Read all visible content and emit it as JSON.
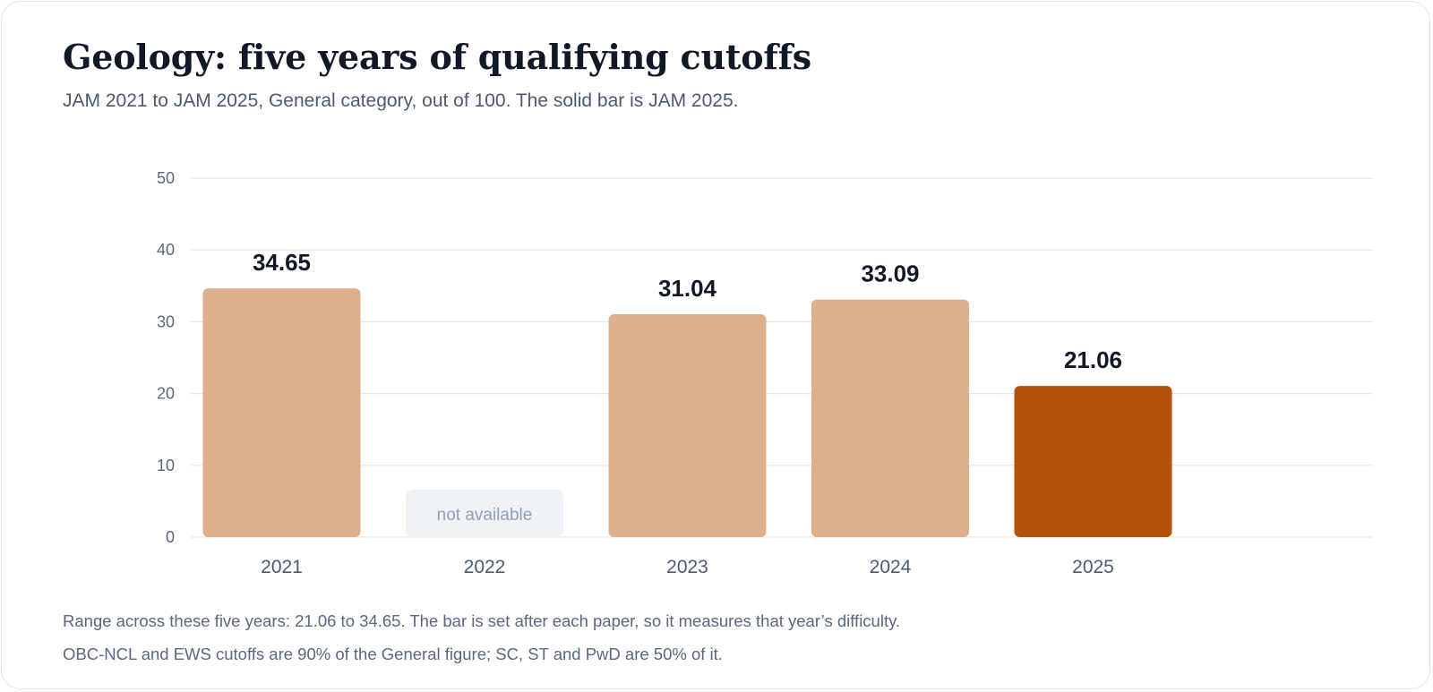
{
  "title": "Geology: five years of qualifying cutoffs",
  "subtitle": "JAM 2021 to JAM 2025, General category, out of 100. The solid bar is JAM 2025.",
  "notes": [
    "Range across these five years: 21.06 to 34.65. The bar is set after each paper, so it measures that year’s difficulty.",
    "OBC-NCL and EWS cutoffs are 90% of the General figure; SC, ST and PwD are 50% of it."
  ],
  "colors": {
    "bar": "#ddaf8d",
    "highlight": "#b3530b",
    "grid": "#e3e7ef",
    "na_fill": "#eef2f7"
  },
  "chart_data": {
    "type": "bar",
    "categories": [
      "2021",
      "2022",
      "2023",
      "2024",
      "2025"
    ],
    "values": [
      34.65,
      null,
      31.04,
      33.09,
      21.06
    ],
    "value_labels": [
      "34.65",
      "not available",
      "31.04",
      "33.09",
      "21.06"
    ],
    "highlight_index": 4,
    "ylim": [
      0,
      50
    ],
    "yticks": [
      0,
      10,
      20,
      30,
      40,
      50
    ],
    "grid": true,
    "xlabel": "",
    "ylabel": ""
  }
}
